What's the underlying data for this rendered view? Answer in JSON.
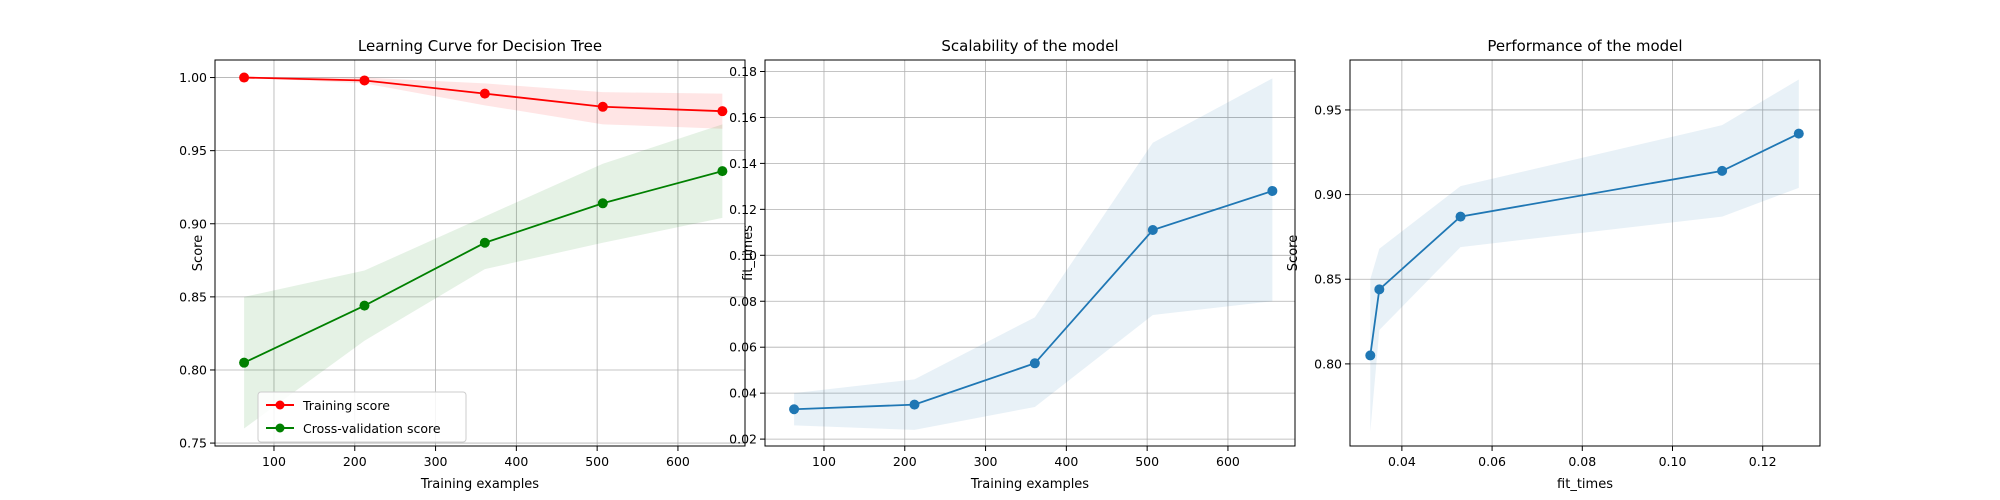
{
  "chart_data": [
    {
      "type": "line",
      "title": "Learning Curve for Decision Tree",
      "xlabel": "Training examples",
      "ylabel": "Score",
      "xlim": [
        27,
        683
      ],
      "ylim": [
        0.748,
        1.012
      ],
      "xticks": [
        100,
        200,
        300,
        400,
        500,
        600
      ],
      "yticks": [
        0.75,
        0.8,
        0.85,
        0.9,
        0.95,
        1.0
      ],
      "yticks_labels": [
        "0.75",
        "0.80",
        "0.85",
        "0.90",
        "0.95",
        "1.00"
      ],
      "grid": true,
      "legend": "lower-left",
      "x": [
        63,
        212,
        361,
        507,
        655
      ],
      "series": [
        {
          "name": "Training score",
          "color": "#ff0000",
          "marker": "circle",
          "values": [
            1.0,
            0.998,
            0.989,
            0.98,
            0.977
          ],
          "band_low": [
            1.0,
            0.996,
            0.981,
            0.968,
            0.965
          ],
          "band_high": [
            1.0,
            1.0,
            0.996,
            0.99,
            0.989
          ]
        },
        {
          "name": "Cross-validation score",
          "color": "#008000",
          "marker": "circle",
          "values": [
            0.805,
            0.844,
            0.887,
            0.914,
            0.936
          ],
          "band_low": [
            0.76,
            0.82,
            0.869,
            0.887,
            0.904
          ],
          "band_high": [
            0.85,
            0.868,
            0.905,
            0.941,
            0.968
          ]
        }
      ]
    },
    {
      "type": "line",
      "title": "Scalability of the model",
      "xlabel": "Training examples",
      "ylabel": "fit_times",
      "xlim": [
        27,
        683
      ],
      "ylim": [
        0.017,
        0.185
      ],
      "xticks": [
        100,
        200,
        300,
        400,
        500,
        600
      ],
      "yticks": [
        0.02,
        0.04,
        0.06,
        0.08,
        0.1,
        0.12,
        0.14,
        0.16,
        0.18
      ],
      "yticks_labels": [
        "0.02",
        "0.04",
        "0.06",
        "0.08",
        "0.10",
        "0.12",
        "0.14",
        "0.16",
        "0.18"
      ],
      "grid": true,
      "x": [
        63,
        212,
        361,
        507,
        655
      ],
      "series": [
        {
          "color": "#1f77b4",
          "marker": "circle",
          "values": [
            0.033,
            0.035,
            0.053,
            0.111,
            0.128
          ],
          "band_low": [
            0.026,
            0.024,
            0.034,
            0.074,
            0.08
          ],
          "band_high": [
            0.04,
            0.046,
            0.073,
            0.149,
            0.177
          ]
        }
      ]
    },
    {
      "type": "line",
      "title": "Performance of the model",
      "xlabel": "fit_times",
      "ylabel": "Score",
      "xlim": [
        0.0285,
        0.1327
      ],
      "ylim": [
        0.7515,
        0.9795
      ],
      "xticks": [
        0.04,
        0.06,
        0.08,
        0.1,
        0.12
      ],
      "xticks_labels": [
        "0.04",
        "0.06",
        "0.08",
        "0.10",
        "0.12"
      ],
      "yticks": [
        0.8,
        0.85,
        0.9,
        0.95
      ],
      "yticks_labels": [
        "0.80",
        "0.85",
        "0.90",
        "0.95"
      ],
      "grid": true,
      "series": [
        {
          "color": "#1f77b4",
          "marker": "circle",
          "x": [
            0.033,
            0.035,
            0.053,
            0.111,
            0.128
          ],
          "values": [
            0.805,
            0.844,
            0.887,
            0.914,
            0.936
          ],
          "band_low": [
            0.76,
            0.82,
            0.869,
            0.887,
            0.904
          ],
          "band_high": [
            0.85,
            0.868,
            0.905,
            0.941,
            0.968
          ]
        }
      ]
    }
  ]
}
